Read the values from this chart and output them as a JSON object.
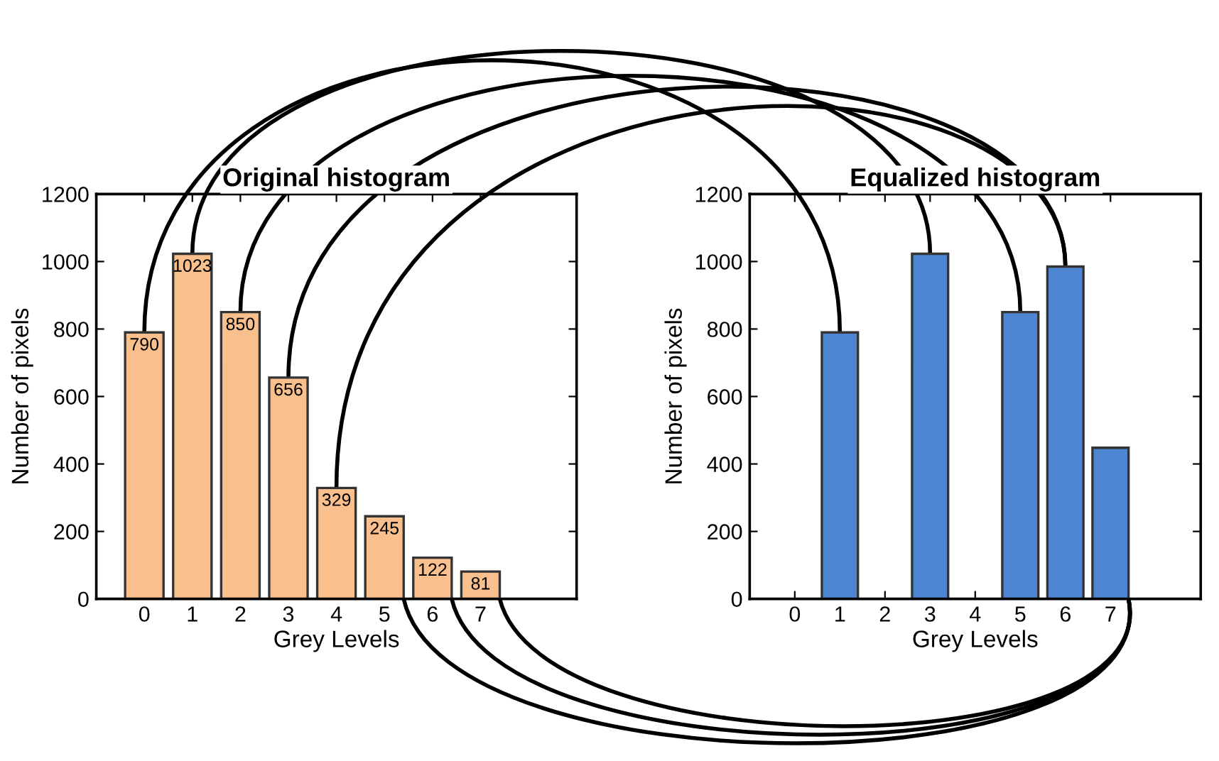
{
  "chart_data": [
    {
      "type": "bar",
      "title": "Original histogram",
      "xlabel": "Grey Levels",
      "ylabel": "Number of pixels",
      "x": [
        0,
        1,
        2,
        3,
        4,
        5,
        6,
        7
      ],
      "values": [
        790,
        1023,
        850,
        656,
        329,
        245,
        122,
        81
      ],
      "color": "#f9c08e",
      "xlim": [
        -1,
        9
      ],
      "xticks": [
        0,
        1,
        2,
        3,
        4,
        5,
        6,
        7
      ],
      "ylim": [
        0,
        1200
      ],
      "yticks": [
        0,
        200,
        400,
        600,
        800,
        1000,
        1200
      ],
      "data_labels": true
    },
    {
      "type": "bar",
      "title": "Equalized histogram",
      "xlabel": "Grey Levels",
      "ylabel": "Number of pixels",
      "x": [
        0,
        1,
        2,
        3,
        4,
        5,
        6,
        7
      ],
      "values": [
        0,
        790,
        0,
        1023,
        0,
        850,
        985,
        448
      ],
      "color": "#4f86d1",
      "xlim": [
        -1,
        9
      ],
      "xticks": [
        0,
        1,
        2,
        3,
        4,
        5,
        6,
        7
      ],
      "ylim": [
        0,
        1200
      ],
      "yticks": [
        0,
        200,
        400,
        600,
        800,
        1000,
        1200
      ]
    }
  ]
}
